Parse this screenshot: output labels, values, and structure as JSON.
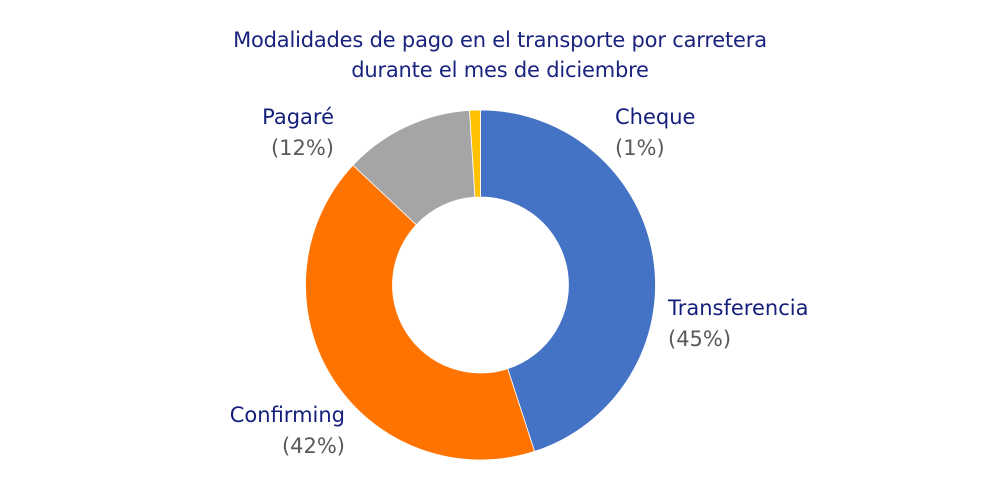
{
  "chart_data": {
    "type": "pie",
    "variant": "donut",
    "title": "Modalidades de pago en el transporte por carretera durante el mes de diciembre",
    "title_lines": [
      "Modalidades de pago en el transporte por carretera",
      "durante el mes de diciembre"
    ],
    "categories": [
      "Transferencia",
      "Confirming",
      "Pagaré",
      "Cheque"
    ],
    "values": [
      45,
      42,
      12,
      1
    ],
    "unit": "%",
    "colors": [
      "#4472C4",
      "#FF7300",
      "#A5A5A5",
      "#FFC000"
    ],
    "labels": [
      {
        "name": "Transferencia",
        "pct": "(45%)"
      },
      {
        "name": "Confirming",
        "pct": "(42%)"
      },
      {
        "name": "Pagaré",
        "pct": "(12%)"
      },
      {
        "name": "Cheque",
        "pct": "(1%)"
      }
    ],
    "legend": "none (data labels outside)"
  }
}
